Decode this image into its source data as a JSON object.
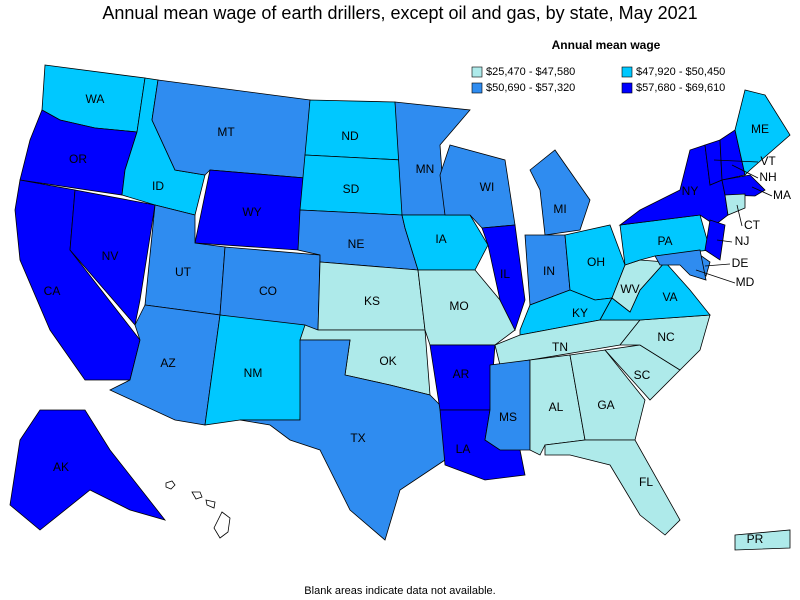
{
  "title": "Annual mean wage of earth drillers, except oil and gas, by state, May 2021",
  "legend": {
    "title": "Annual mean wage",
    "classes": [
      {
        "label": "$25,470 - $47,580",
        "color": "#aeeaea"
      },
      {
        "label": "$47,920 - $50,450",
        "color": "#00c8ff"
      },
      {
        "label": "$50,690 - $57,320",
        "color": "#2f8cf0"
      },
      {
        "label": "$57,680 - $69,610",
        "color": "#0000ff"
      }
    ]
  },
  "states": [
    {
      "label": "WA",
      "class": 1
    },
    {
      "label": "OR",
      "class": 3
    },
    {
      "label": "CA",
      "class": 3
    },
    {
      "label": "NV",
      "class": 3
    },
    {
      "label": "ID",
      "class": 1
    },
    {
      "label": "MT",
      "class": 2
    },
    {
      "label": "WY",
      "class": 3
    },
    {
      "label": "UT",
      "class": 2
    },
    {
      "label": "AZ",
      "class": 2
    },
    {
      "label": "CO",
      "class": 2
    },
    {
      "label": "NM",
      "class": 1
    },
    {
      "label": "ND",
      "class": 1
    },
    {
      "label": "SD",
      "class": 1
    },
    {
      "label": "NE",
      "class": 2
    },
    {
      "label": "KS",
      "class": 0
    },
    {
      "label": "OK",
      "class": 0
    },
    {
      "label": "TX",
      "class": 2
    },
    {
      "label": "MN",
      "class": 2
    },
    {
      "label": "IA",
      "class": 1
    },
    {
      "label": "MO",
      "class": 0
    },
    {
      "label": "AR",
      "class": 3
    },
    {
      "label": "LA",
      "class": 3
    },
    {
      "label": "WI",
      "class": 2
    },
    {
      "label": "IL",
      "class": 3
    },
    {
      "label": "MI",
      "class": 2
    },
    {
      "label": "IN",
      "class": 2
    },
    {
      "label": "OH",
      "class": 1
    },
    {
      "label": "KY",
      "class": 1
    },
    {
      "label": "TN",
      "class": 0
    },
    {
      "label": "MS",
      "class": 2
    },
    {
      "label": "AL",
      "class": 0
    },
    {
      "label": "GA",
      "class": 0
    },
    {
      "label": "FL",
      "class": 0
    },
    {
      "label": "SC",
      "class": 0
    },
    {
      "label": "NC",
      "class": 0
    },
    {
      "label": "VA",
      "class": 1
    },
    {
      "label": "WV",
      "class": 0
    },
    {
      "label": "PA",
      "class": 1
    },
    {
      "label": "NY",
      "class": 3
    },
    {
      "label": "VT",
      "class": 3
    },
    {
      "label": "NH",
      "class": 3
    },
    {
      "label": "ME",
      "class": 1
    },
    {
      "label": "MA",
      "class": 3
    },
    {
      "label": "CT",
      "class": 0
    },
    {
      "label": "NJ",
      "class": 3
    },
    {
      "label": "DE",
      "class": 2
    },
    {
      "label": "MD",
      "class": 2
    },
    {
      "label": "AK",
      "class": 3
    },
    {
      "label": "PR",
      "class": 0
    }
  ],
  "footnote": "Blank areas indicate data not available."
}
